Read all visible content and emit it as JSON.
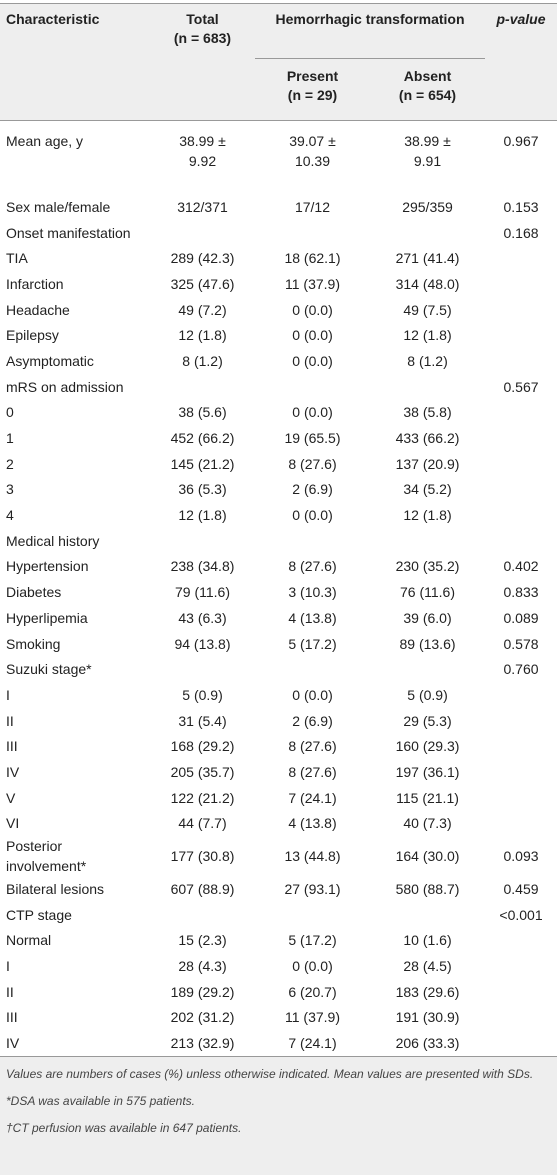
{
  "table": {
    "header": {
      "characteristic": "Characteristic",
      "total": "Total",
      "total_n": "(n = 683)",
      "group": "Hemorrhagic transformation",
      "present": "Present",
      "present_n": "(n = 29)",
      "absent": "Absent",
      "absent_n": "(n = 654)",
      "p_value": "p-value"
    },
    "rows": [
      [
        "Mean age, y",
        "38.99 ± 9.92",
        "39.07 ± 10.39",
        "38.99 ± 9.91",
        "0.967"
      ],
      [
        "Sex male/female",
        "312/371",
        "17/12",
        "295/359",
        "0.153"
      ],
      [
        "Onset manifestation",
        null,
        null,
        null,
        "0.168"
      ],
      [
        "TIA",
        "289 (42.3)",
        "18 (62.1)",
        "271 (41.4)",
        null
      ],
      [
        "Infarction",
        "325 (47.6)",
        "11 (37.9)",
        "314 (48.0)",
        null
      ],
      [
        "Headache",
        "49 (7.2)",
        "0 (0.0)",
        "49 (7.5)",
        null
      ],
      [
        "Epilepsy",
        "12 (1.8)",
        "0 (0.0)",
        "12 (1.8)",
        null
      ],
      [
        "Asymptomatic",
        "8 (1.2)",
        "0 (0.0)",
        "8 (1.2)",
        null
      ],
      [
        "mRS on admission",
        null,
        null,
        null,
        "0.567"
      ],
      [
        "0",
        "38 (5.6)",
        "0 (0.0)",
        "38 (5.8)",
        null
      ],
      [
        "1",
        "452 (66.2)",
        "19 (65.5)",
        "433 (66.2)",
        null
      ],
      [
        "2",
        "145 (21.2)",
        "8 (27.6)",
        "137 (20.9)",
        null
      ],
      [
        "3",
        "36 (5.3)",
        "2 (6.9)",
        "34 (5.2)",
        null
      ],
      [
        "4",
        "12 (1.8)",
        "0 (0.0)",
        "12 (1.8)",
        null
      ],
      [
        "Medical history",
        null,
        null,
        null,
        null
      ],
      [
        "Hypertension",
        "238 (34.8)",
        "8 (27.6)",
        "230 (35.2)",
        "0.402"
      ],
      [
        "Diabetes",
        "79 (11.6)",
        "3 (10.3)",
        "76 (11.6)",
        "0.833"
      ],
      [
        "Hyperlipemia",
        "43 (6.3)",
        "4 (13.8)",
        "39 (6.0)",
        "0.089"
      ],
      [
        "Smoking",
        "94 (13.8)",
        "5 (17.2)",
        "89 (13.6)",
        "0.578"
      ],
      [
        "Suzuki stage*",
        null,
        null,
        null,
        "0.760"
      ],
      [
        "I",
        "5 (0.9)",
        "0 (0.0)",
        "5 (0.9)",
        null
      ],
      [
        "II",
        "31 (5.4)",
        "2 (6.9)",
        "29 (5.3)",
        null
      ],
      [
        "III",
        "168 (29.2)",
        "8 (27.6)",
        "160 (29.3)",
        null
      ],
      [
        "IV",
        "205 (35.7)",
        "8 (27.6)",
        "197 (36.1)",
        null
      ],
      [
        "V",
        "122 (21.2)",
        "7 (24.1)",
        "115 (21.1)",
        null
      ],
      [
        "VI",
        "44 (7.7)",
        "4 (13.8)",
        "40 (7.3)",
        null
      ],
      [
        "Posterior involvement*",
        "177 (30.8)",
        "13 (44.8)",
        "164 (30.0)",
        "0.093"
      ],
      [
        "Bilateral lesions",
        "607 (88.9)",
        "27 (93.1)",
        "580 (88.7)",
        "0.459"
      ],
      [
        "CTP stage",
        null,
        null,
        null,
        "<0.001"
      ],
      [
        "Normal",
        "15 (2.3)",
        "5 (17.2)",
        "10 (1.6)",
        null
      ],
      [
        "I",
        "28 (4.3)",
        "0 (0.0)",
        "28 (4.5)",
        null
      ],
      [
        "II",
        "189 (29.2)",
        "6 (20.7)",
        "183 (29.6)",
        null
      ],
      [
        "III",
        "202 (31.2)",
        "11 (37.9)",
        "191 (30.9)",
        null
      ],
      [
        "IV",
        "213 (32.9)",
        "7 (24.1)",
        "206 (33.3)",
        null
      ]
    ]
  },
  "footnotes": [
    "Values are numbers of cases (%) unless otherwise indicated. Mean values are presented with SDs.",
    "*DSA was available in 575 patients.",
    "†CT perfusion was available in 647 patients."
  ]
}
